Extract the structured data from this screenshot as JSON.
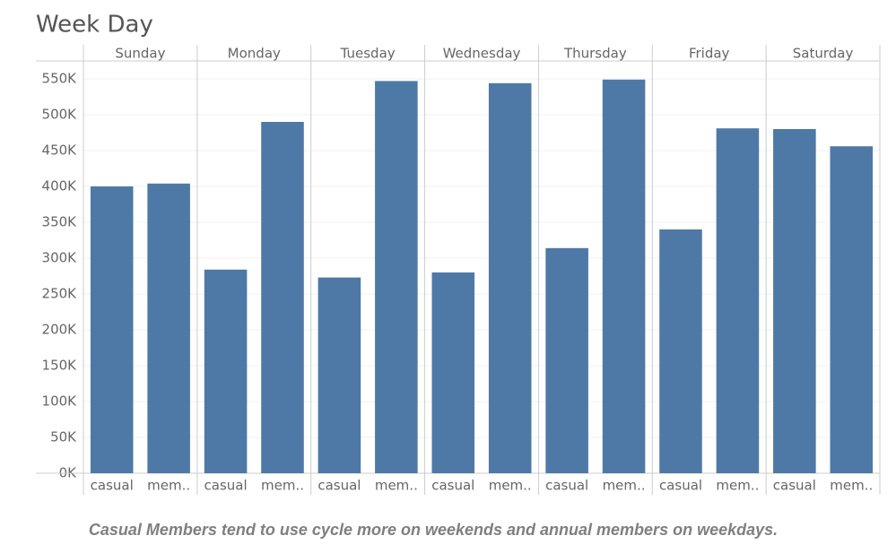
{
  "chart_data": {
    "type": "bar",
    "title": "Week Day",
    "categories": [
      "Sunday",
      "Monday",
      "Tuesday",
      "Wednesday",
      "Thursday",
      "Friday",
      "Saturday"
    ],
    "groups": [
      "casual",
      "mem.."
    ],
    "values": [
      [
        400000,
        404000
      ],
      [
        284000,
        490000
      ],
      [
        273000,
        547000
      ],
      [
        280000,
        544000
      ],
      [
        314000,
        549000
      ],
      [
        340000,
        481000
      ],
      [
        480000,
        456000
      ]
    ],
    "color": "#4e79a7",
    "ylim": [
      0,
      575000
    ],
    "yticks": [
      {
        "value": 0,
        "label": "0K"
      },
      {
        "value": 50000,
        "label": "50K"
      },
      {
        "value": 100000,
        "label": "100K"
      },
      {
        "value": 150000,
        "label": "150K"
      },
      {
        "value": 200000,
        "label": "200K"
      },
      {
        "value": 250000,
        "label": "250K"
      },
      {
        "value": 300000,
        "label": "300K"
      },
      {
        "value": 350000,
        "label": "350K"
      },
      {
        "value": 400000,
        "label": "400K"
      },
      {
        "value": 450000,
        "label": "450K"
      },
      {
        "value": 500000,
        "label": "500K"
      },
      {
        "value": 550000,
        "label": "550K"
      }
    ],
    "grid": true,
    "caption": "Casual Members tend to use cycle more on weekends and annual members on weekdays."
  }
}
